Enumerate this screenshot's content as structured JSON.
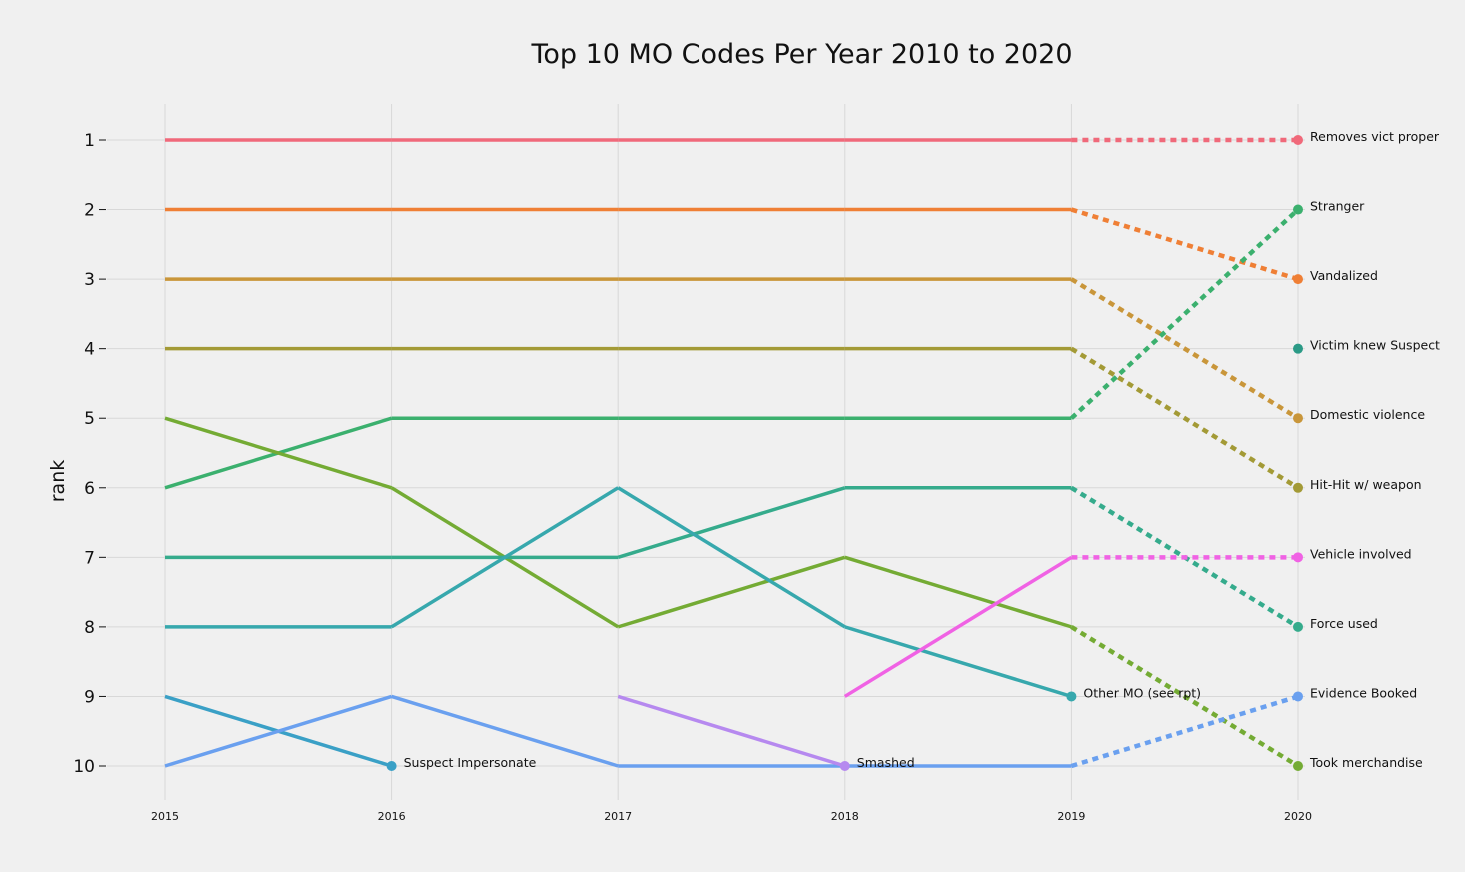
{
  "chart_data": {
    "type": "line",
    "title": "Top 10 MO Codes Per Year 2010 to 2020",
    "xlabel": "",
    "ylabel": "rank",
    "x": [
      "2015",
      "2016",
      "2017",
      "2018",
      "2019",
      "2020"
    ],
    "y_ticks": [
      "1",
      "2",
      "3",
      "4",
      "5",
      "6",
      "7",
      "8",
      "9",
      "10"
    ],
    "ylim": [
      10,
      1
    ],
    "grid": true,
    "legend": "none",
    "series": [
      {
        "name": "Removes vict proper",
        "color": "#f0697a",
        "values": [
          1,
          1,
          1,
          1,
          1,
          1
        ],
        "label_year": "2020"
      },
      {
        "name": "Vandalized",
        "color": "#ef7f35",
        "values": [
          2,
          2,
          2,
          2,
          2,
          3
        ],
        "label_year": "2020"
      },
      {
        "name": "Domestic violence",
        "color": "#c9963a",
        "values": [
          3,
          3,
          3,
          3,
          3,
          5
        ],
        "label_year": "2020"
      },
      {
        "name": "Hit-Hit w/ weapon",
        "color": "#a39a36",
        "values": [
          4,
          4,
          4,
          4,
          4,
          6
        ],
        "label_year": "2020"
      },
      {
        "name": "Stranger",
        "color": "#3bb06e",
        "values": [
          6,
          5,
          5,
          5,
          5,
          2
        ],
        "label_year": "2020"
      },
      {
        "name": "Took merchandise",
        "color": "#74ab34",
        "values": [
          5,
          6,
          8,
          7,
          8,
          10
        ],
        "label_year": "2020"
      },
      {
        "name": "Force used",
        "color": "#35ab8c",
        "values": [
          7,
          7,
          7,
          6,
          6,
          8
        ],
        "label_year": "2020"
      },
      {
        "name": "Other MO (see rpt)",
        "color": "#37a8ad",
        "values": [
          8,
          8,
          6,
          8,
          9,
          null
        ],
        "label_year": "2019"
      },
      {
        "name": "Suspect Impersonate",
        "color": "#3aa0c6",
        "values": [
          9,
          10,
          null,
          null,
          null,
          null
        ],
        "label_year": "2016"
      },
      {
        "name": "Evidence Booked",
        "color": "#6aa0ef",
        "values": [
          10,
          9,
          10,
          10,
          10,
          9
        ],
        "label_year": "2020"
      },
      {
        "name": "Smashed",
        "color": "#b689ef",
        "values": [
          null,
          null,
          9,
          10,
          null,
          null
        ],
        "label_year": "2018"
      },
      {
        "name": "Vehicle involved",
        "color": "#f062e4",
        "values": [
          null,
          null,
          null,
          9,
          7,
          7
        ],
        "label_year": "2020"
      },
      {
        "name": "Victim knew Suspect",
        "color": "#2b9a86",
        "values": [
          null,
          null,
          null,
          null,
          null,
          4
        ],
        "label_year": "2020"
      }
    ]
  }
}
